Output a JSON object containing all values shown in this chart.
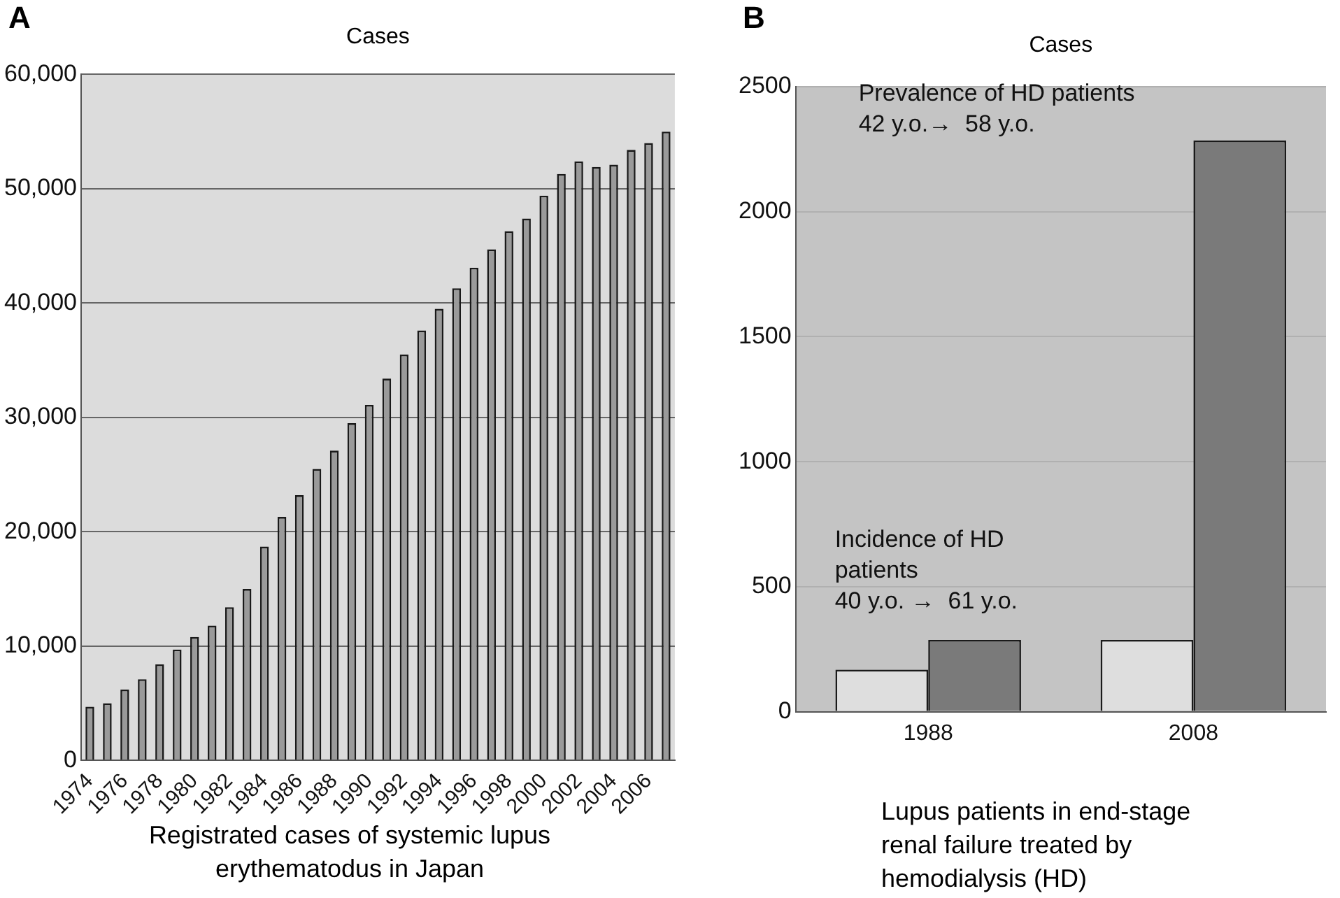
{
  "chart_data": [
    {
      "type": "bar",
      "title": "A",
      "ylabel": "Cases",
      "xlabel": "Registrated cases of systemic lupus erythematodus in Japan",
      "categories": [
        "1974",
        null,
        "1976",
        null,
        "1978",
        null,
        "1980",
        null,
        "1982",
        null,
        "1984",
        null,
        "1986",
        null,
        "1988",
        null,
        "1990",
        null,
        "1992",
        null,
        "1994",
        null,
        "1996",
        null,
        "1998",
        null,
        "2000",
        null,
        "2002",
        null,
        "2004",
        null,
        "2006",
        null
      ],
      "values": [
        4700,
        5000,
        6200,
        7100,
        8400,
        9700,
        10800,
        11800,
        13400,
        15000,
        18700,
        21300,
        23200,
        25500,
        27100,
        29500,
        31100,
        33400,
        35500,
        37600,
        39500,
        41300,
        43100,
        44700,
        46300,
        47400,
        49400,
        51300,
        52400,
        51900,
        52100,
        53400,
        54000,
        55000
      ],
      "color": "#9a9a9a",
      "ylim": [
        0,
        60000
      ],
      "yticks": [
        {
          "value": 0,
          "label": "0"
        },
        {
          "value": 10000,
          "label": "10,000"
        },
        {
          "value": 20000,
          "label": "20,000"
        },
        {
          "value": 30000,
          "label": "30,000"
        },
        {
          "value": 40000,
          "label": "40,000"
        },
        {
          "value": 50000,
          "label": "50,000"
        },
        {
          "value": 60000,
          "label": "60,000"
        }
      ],
      "grid": "y"
    },
    {
      "type": "bar",
      "title": "B",
      "ylabel": "Cases",
      "xlabel": "Lupus patients in end-stage renal failure treated by hemodialysis (HD)",
      "categories": [
        "1988",
        "2008"
      ],
      "series": [
        {
          "color": "#dedede",
          "values": [
            168,
            287
          ]
        },
        {
          "color": "#7a7a7a",
          "values": [
            287,
            2285
          ]
        }
      ],
      "ylim": [
        0,
        2500
      ],
      "yticks": [
        0,
        500,
        1000,
        1500,
        2000,
        2500
      ],
      "grid": "y",
      "annotations": [
        "Prevalence of HD patients\n42 y.o.→  58 y.o.",
        "Incidence of HD patients\n40 y.o. →  61 y.o."
      ]
    }
  ]
}
